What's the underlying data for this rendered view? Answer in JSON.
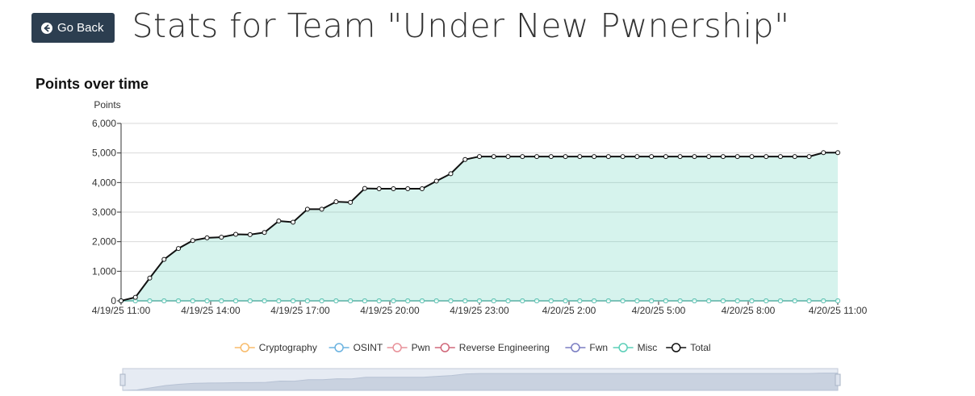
{
  "header": {
    "back_label": "Go Back",
    "title": "Stats for Team \"Under New Pwnership\""
  },
  "section": {
    "title": "Points over time"
  },
  "chart_data": {
    "type": "area",
    "stacked": true,
    "ylabel": "Points",
    "xlabel": "",
    "ylim": [
      0,
      6000
    ],
    "yticks": [
      0,
      1000,
      2000,
      3000,
      4000,
      5000,
      6000
    ],
    "ytick_labels": [
      "0",
      "1,000",
      "2,000",
      "3,000",
      "4,000",
      "5,000",
      "6,000"
    ],
    "xticks": [
      "4/19/25 11:00",
      "4/19/25 14:00",
      "4/19/25 17:00",
      "4/19/25 20:00",
      "4/19/25 23:00",
      "4/20/25 2:00",
      "4/20/25 5:00",
      "4/20/25 8:00",
      "4/20/25 11:00"
    ],
    "x_hours": [
      0,
      0.5,
      1,
      1.5,
      2,
      2.5,
      3,
      3.5,
      4,
      4.5,
      5,
      5.5,
      6,
      6.5,
      7,
      7.5,
      8,
      8.5,
      9,
      9.5,
      10,
      10.5,
      11,
      11.5,
      12,
      12.5,
      13,
      13.5,
      14,
      14.5,
      15,
      15.5,
      16,
      16.5,
      17,
      17.5,
      18,
      18.5,
      19,
      19.5,
      20,
      20.5,
      21,
      21.5,
      22,
      22.5,
      23,
      23.5,
      24,
      24.5,
      25
    ],
    "grid": true,
    "legend_position": "bottom",
    "series": [
      {
        "name": "Cryptography",
        "color": "#f8bc6c",
        "values": [
          0,
          0,
          0,
          0,
          0,
          0,
          0,
          0,
          0,
          0,
          0,
          0,
          0,
          0,
          0,
          0,
          0,
          0,
          0,
          0,
          0,
          0,
          0,
          0,
          0,
          0,
          0,
          0,
          0,
          0,
          0,
          0,
          0,
          0,
          0,
          0,
          0,
          0,
          0,
          0,
          0,
          0,
          0,
          0,
          0,
          0,
          0,
          0,
          0,
          0,
          0
        ]
      },
      {
        "name": "OSINT",
        "color": "#6bb3e0",
        "values": [
          0,
          0,
          0,
          0,
          0,
          0,
          0,
          0,
          0,
          0,
          0,
          0,
          0,
          0,
          0,
          0,
          0,
          0,
          0,
          0,
          0,
          0,
          0,
          0,
          0,
          0,
          0,
          0,
          0,
          0,
          0,
          0,
          0,
          0,
          0,
          0,
          0,
          0,
          0,
          0,
          0,
          0,
          0,
          0,
          0,
          0,
          0,
          0,
          0,
          0,
          0
        ]
      },
      {
        "name": "Pwn",
        "color": "#e8929a",
        "values": [
          0,
          0,
          0,
          0,
          0,
          0,
          0,
          0,
          0,
          0,
          0,
          0,
          0,
          0,
          0,
          0,
          0,
          0,
          0,
          0,
          0,
          0,
          0,
          0,
          0,
          0,
          0,
          0,
          0,
          0,
          0,
          0,
          0,
          0,
          0,
          0,
          0,
          0,
          0,
          0,
          0,
          0,
          0,
          0,
          0,
          0,
          0,
          0,
          0,
          0,
          0
        ]
      },
      {
        "name": "Reverse Engineering",
        "color": "#d0687a",
        "values": [
          0,
          0,
          0,
          0,
          0,
          0,
          0,
          0,
          0,
          0,
          0,
          0,
          0,
          0,
          0,
          0,
          0,
          0,
          0,
          0,
          0,
          0,
          0,
          0,
          0,
          0,
          0,
          0,
          0,
          0,
          0,
          0,
          0,
          0,
          0,
          0,
          0,
          0,
          0,
          0,
          0,
          0,
          0,
          0,
          0,
          0,
          0,
          0,
          0,
          0,
          0
        ]
      },
      {
        "name": "Fwn",
        "color": "#7a7dc2",
        "values": [
          0,
          0,
          0,
          0,
          0,
          0,
          0,
          0,
          0,
          0,
          0,
          0,
          0,
          0,
          0,
          0,
          0,
          0,
          0,
          0,
          0,
          0,
          0,
          0,
          0,
          0,
          0,
          0,
          0,
          0,
          0,
          0,
          0,
          0,
          0,
          0,
          0,
          0,
          0,
          0,
          0,
          0,
          0,
          0,
          0,
          0,
          0,
          0,
          0,
          0,
          0
        ]
      },
      {
        "name": "Misc",
        "color": "#5ccfb8",
        "values": [
          0,
          0,
          0,
          0,
          0,
          0,
          0,
          0,
          0,
          0,
          0,
          0,
          0,
          0,
          0,
          0,
          0,
          0,
          0,
          0,
          0,
          0,
          0,
          0,
          0,
          0,
          0,
          0,
          0,
          0,
          0,
          0,
          0,
          0,
          0,
          0,
          0,
          0,
          0,
          0,
          0,
          0,
          0,
          0,
          0,
          0,
          0,
          0,
          0,
          0,
          0
        ]
      },
      {
        "name": "Total",
        "color": "#111111",
        "values": [
          0,
          120,
          770,
          1400,
          1770,
          2040,
          2130,
          2150,
          2250,
          2240,
          2310,
          2700,
          2660,
          3100,
          3100,
          3350,
          3330,
          3800,
          3790,
          3790,
          3790,
          3790,
          4050,
          4300,
          4780,
          4880,
          4880,
          4880,
          4880,
          4880,
          4880,
          4880,
          4880,
          4880,
          4880,
          4880,
          4880,
          4880,
          4880,
          4880,
          4880,
          4880,
          4880,
          4880,
          4880,
          4880,
          4880,
          4880,
          4880,
          5010,
          5010
        ]
      }
    ]
  }
}
